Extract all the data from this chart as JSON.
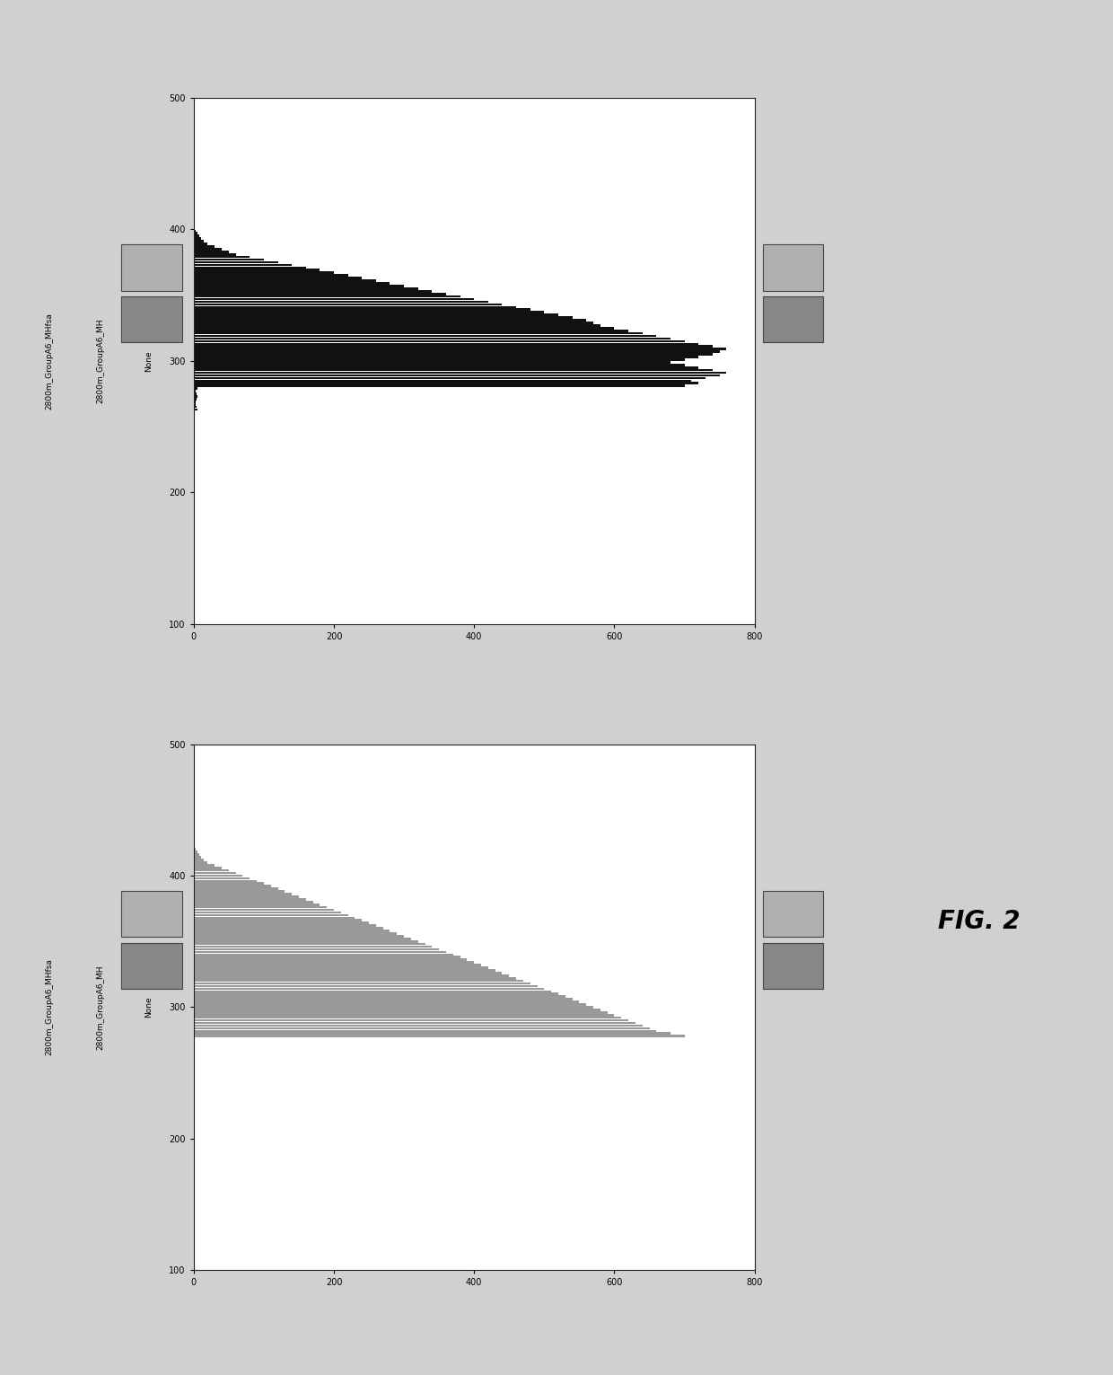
{
  "fig_width": 12.4,
  "fig_height": 15.31,
  "fig_bg_color": "#d0d0d0",
  "panel_bg_color": "#c8c8c8",
  "plot_bg_color": "#ffffff",
  "top_chart": {
    "ylabel_left": "2800m_GroupA6_MHfsa",
    "ylabel_mid": "2800m_GroupA6_MH",
    "ylabel_right": "None",
    "xlim": [
      100,
      500
    ],
    "ylim": [
      0,
      800
    ],
    "xticks": [
      100,
      200,
      300,
      400,
      500
    ],
    "yticks": [
      0,
      200,
      400,
      600,
      800
    ],
    "bar_color": "#111111",
    "box1_color": "#b0b0b0",
    "box2_color": "#888888",
    "bar_positions": [
      263,
      265,
      267,
      269,
      271,
      273,
      275,
      277,
      279,
      281,
      283,
      285,
      287,
      289,
      291,
      293,
      295,
      297,
      299,
      301,
      303,
      305,
      307,
      309,
      311,
      313,
      315,
      317,
      319,
      321,
      323,
      325,
      327,
      329,
      331,
      333,
      335,
      337,
      339,
      341,
      343,
      345,
      347,
      349,
      351,
      353,
      355,
      357,
      359,
      361,
      363,
      365,
      367,
      369,
      371,
      373,
      375,
      377,
      379,
      381,
      383,
      385,
      387,
      389,
      391,
      393,
      395,
      397,
      399,
      401,
      403,
      405,
      407,
      409,
      411,
      413,
      415,
      417,
      419,
      421,
      423,
      425,
      427
    ],
    "bar_widths": [
      5,
      4,
      3,
      3,
      4,
      5,
      4,
      3,
      5,
      700,
      720,
      710,
      730,
      750,
      760,
      740,
      720,
      700,
      680,
      700,
      720,
      740,
      750,
      760,
      740,
      720,
      700,
      680,
      660,
      640,
      620,
      600,
      580,
      570,
      560,
      540,
      520,
      500,
      480,
      460,
      440,
      420,
      400,
      380,
      360,
      340,
      320,
      300,
      280,
      260,
      240,
      220,
      200,
      180,
      160,
      140,
      120,
      100,
      80,
      60,
      50,
      40,
      30,
      20,
      15,
      10,
      8,
      5,
      3,
      2,
      2,
      1,
      1,
      1,
      1,
      1,
      1,
      1,
      1,
      1,
      1,
      1,
      1
    ]
  },
  "bottom_chart": {
    "ylabel_left": "2800m_GroupA6_MHfsa",
    "ylabel_mid": "2800m_GroupA6_MH",
    "ylabel_right": "None",
    "xlim": [
      100,
      500
    ],
    "ylim": [
      0,
      800
    ],
    "xticks": [
      100,
      200,
      300,
      400,
      500
    ],
    "yticks": [
      0,
      200,
      400,
      600,
      800
    ],
    "bar_color": "#999999",
    "box1_color": "#b0b0b0",
    "box2_color": "#888888",
    "bar_positions": [
      278,
      280,
      282,
      284,
      286,
      288,
      290,
      292,
      294,
      296,
      298,
      300,
      302,
      304,
      306,
      308,
      310,
      312,
      314,
      316,
      318,
      320,
      322,
      324,
      326,
      328,
      330,
      332,
      334,
      336,
      338,
      340,
      342,
      344,
      346,
      348,
      350,
      352,
      354,
      356,
      358,
      360,
      362,
      364,
      366,
      368,
      370,
      372,
      374,
      376,
      378,
      380,
      382,
      384,
      386,
      388,
      390,
      392,
      394,
      396,
      398,
      400,
      402,
      404,
      406,
      408,
      410,
      412,
      414,
      416,
      418,
      420,
      422,
      424
    ],
    "bar_widths": [
      700,
      680,
      660,
      650,
      640,
      630,
      620,
      610,
      600,
      590,
      580,
      570,
      560,
      550,
      540,
      530,
      520,
      510,
      500,
      490,
      480,
      470,
      460,
      450,
      440,
      430,
      420,
      410,
      400,
      390,
      380,
      370,
      360,
      350,
      340,
      330,
      320,
      310,
      300,
      290,
      280,
      270,
      260,
      250,
      240,
      230,
      220,
      210,
      200,
      190,
      180,
      170,
      160,
      150,
      140,
      130,
      120,
      110,
      100,
      90,
      80,
      70,
      60,
      50,
      40,
      30,
      20,
      15,
      10,
      8,
      5,
      3,
      2,
      1
    ]
  },
  "fig_caption": "FIG. 2"
}
